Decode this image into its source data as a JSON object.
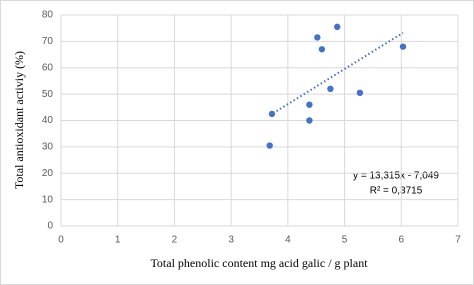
{
  "chart_data": {
    "type": "scatter",
    "x_label": "Total  phenolic content  mg acid galic / g plant",
    "y_label": "Total antioxidant activiy  (%)",
    "x": [
      3.68,
      3.72,
      4.38,
      4.38,
      4.52,
      4.6,
      4.75,
      4.87,
      5.27,
      6.03
    ],
    "series": [
      {
        "color": "#4472c4",
        "values": [
          30.5,
          42.5,
          40,
          46,
          71.5,
          67,
          52,
          75.5,
          50.5,
          68
        ]
      }
    ],
    "trendline": {
      "equation": "y = 13,315x - 7,049",
      "r2": "R² = 0,3715",
      "slope": 13.315,
      "intercept": -7.049,
      "color": "#4472c4"
    },
    "xlim": [
      0,
      7
    ],
    "xticks": [
      0,
      1,
      2,
      3,
      4,
      5,
      6,
      7
    ],
    "ylim": [
      0,
      80
    ],
    "yticks": [
      0,
      10,
      20,
      30,
      40,
      50,
      60,
      70,
      80
    ],
    "grid": true
  }
}
